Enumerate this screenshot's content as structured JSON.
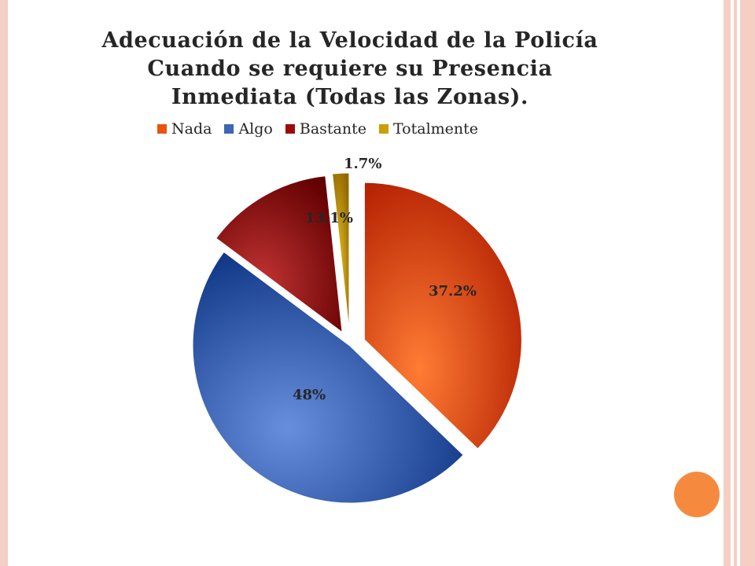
{
  "chart_data": {
    "type": "pie",
    "title_lines": [
      "Adecuación de la Velocidad de la Policía",
      "Cuando se requiere su Presencia",
      "Inmediata (Todas las Zonas)."
    ],
    "categories": [
      "Nada",
      "Algo",
      "Bastante",
      "Totalmente"
    ],
    "values": [
      37.2,
      48,
      13.1,
      1.7
    ],
    "labels": [
      "37.2%",
      "48%",
      "13.1%",
      "1.7%"
    ],
    "colors": [
      "#e8540c",
      "#3f66b4",
      "#9a0c0c",
      "#c9a000"
    ],
    "legend_position": "top",
    "exploded": true
  }
}
